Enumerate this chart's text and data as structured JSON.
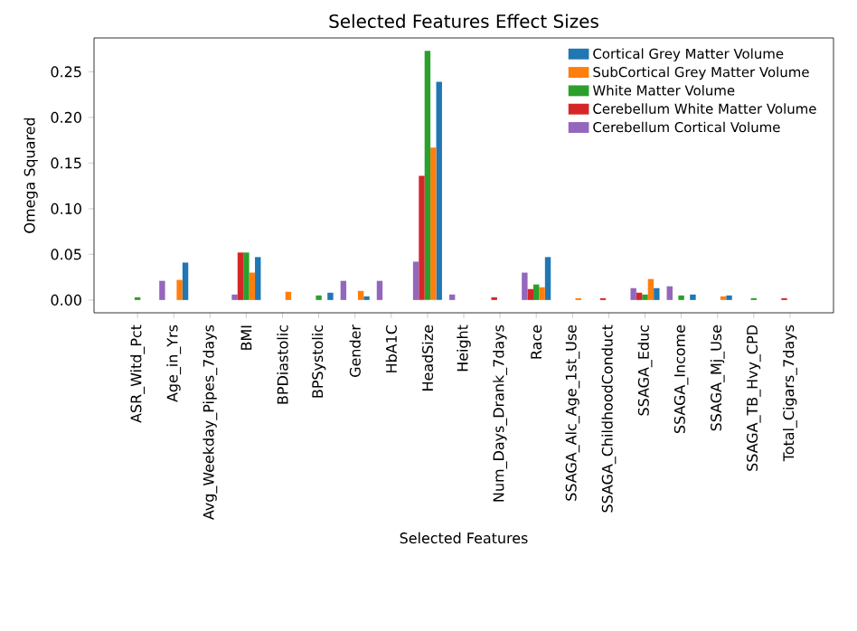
{
  "chart_data": {
    "type": "bar",
    "title": "Selected Features Effect Sizes",
    "xlabel": "Selected Features",
    "ylabel": "Omega Squared",
    "categories": [
      "ASR_Witd_Pct",
      "Age_in_Yrs",
      "Avg_Weekday_Pipes_7days",
      "BMI",
      "BPDiastolic",
      "BPSystolic",
      "Gender",
      "HbA1C",
      "HeadSize",
      "Height",
      "Num_Days_Drank_7days",
      "Race",
      "SSAGA_Alc_Age_1st_Use",
      "SSAGA_ChildhoodConduct",
      "SSAGA_Educ",
      "SSAGA_Income",
      "SSAGA_Mj_Use",
      "SSAGA_TB_Hvy_CPD",
      "Total_Cigars_7days"
    ],
    "series": [
      {
        "name": "Cortical Grey Matter Volume",
        "color": "#1f77b4",
        "values": [
          0,
          0.041,
          0,
          0.047,
          0,
          0.008,
          0.004,
          0,
          0.239,
          0,
          0,
          0.047,
          0,
          0,
          0.013,
          0.006,
          0.005,
          0,
          0
        ]
      },
      {
        "name": "SubCortical Grey Matter Volume",
        "color": "#ff7f0e",
        "values": [
          0,
          0.022,
          0,
          0.03,
          0.009,
          0,
          0.01,
          0,
          0.167,
          0,
          0,
          0.014,
          0.002,
          0,
          0.023,
          0,
          0.004,
          0,
          0
        ]
      },
      {
        "name": "White Matter Volume",
        "color": "#2ca02c",
        "values": [
          0.003,
          0,
          0,
          0.052,
          0,
          0.005,
          0,
          0,
          0.273,
          0,
          0,
          0.017,
          0,
          0,
          0.006,
          0.005,
          0,
          0.002,
          0
        ]
      },
      {
        "name": "Cerebellum White Matter Volume",
        "color": "#d62728",
        "values": [
          0,
          0,
          0,
          0.052,
          0,
          0,
          0,
          0,
          0.136,
          0,
          0.003,
          0.012,
          0,
          0.002,
          0.008,
          0,
          0,
          0,
          0.002
        ]
      },
      {
        "name": "Cerebellum Cortical Volume",
        "color": "#9467bd",
        "values": [
          0,
          0.021,
          0,
          0.006,
          0,
          0,
          0.021,
          0.021,
          0.042,
          0.006,
          0,
          0.03,
          0,
          0,
          0.013,
          0.015,
          0,
          0,
          0
        ]
      }
    ],
    "ylim": [
      -0.014,
      0.287
    ],
    "yticks": [
      {
        "value": 0,
        "label": "0.00"
      },
      {
        "value": 0.05,
        "label": "0.05"
      },
      {
        "value": 0.1,
        "label": "0.10"
      },
      {
        "value": 0.15,
        "label": "0.15"
      },
      {
        "value": 0.2,
        "label": "0.20"
      },
      {
        "value": 0.25,
        "label": "0.25"
      }
    ],
    "legend": "top right",
    "grid": false
  }
}
